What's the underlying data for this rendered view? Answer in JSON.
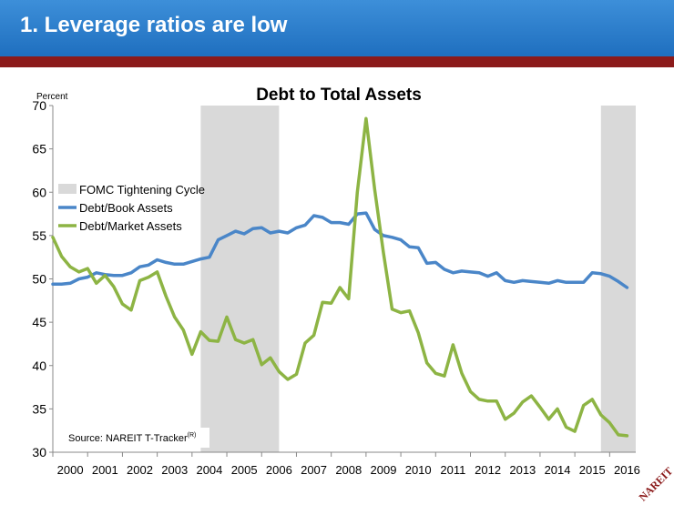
{
  "header": {
    "title": "1.  Leverage ratios are low"
  },
  "colors": {
    "header_bg": "#2a7acb",
    "header_bar": "#8b1a1a",
    "book": "#4a86c8",
    "market": "#8db444",
    "shade": "#d9d9d9"
  },
  "logo": {
    "text": "NAREIT"
  },
  "chart_data": {
    "type": "line",
    "title": "Debt to Total Assets",
    "ylabel": "Percent",
    "ylim": [
      30,
      70
    ],
    "yticks": [
      30,
      35,
      40,
      45,
      50,
      55,
      60,
      65,
      70
    ],
    "xlim": [
      2000,
      2016.75
    ],
    "xticks": [
      "2000",
      "2001",
      "2002",
      "2003",
      "2004",
      "2005",
      "2006",
      "2007",
      "2008",
      "2009",
      "2010",
      "2011",
      "2012",
      "2013",
      "2014",
      "2015",
      "2016"
    ],
    "shaded_periods": [
      {
        "start": 2004.25,
        "end": 2006.5
      },
      {
        "start": 2015.75,
        "end": 2016.75
      }
    ],
    "legend": [
      {
        "label": "FOMC Tightening Cycle",
        "kind": "shade"
      },
      {
        "label": "Debt/Book Assets",
        "kind": "book"
      },
      {
        "label": "Debt/Market Assets",
        "kind": "market"
      }
    ],
    "source": "Source: NAREIT T-Tracker",
    "source_sup": "(R)",
    "series": [
      {
        "name": "Debt/Book Assets",
        "x": [
          2000.0,
          2000.25,
          2000.5,
          2000.75,
          2001.0,
          2001.25,
          2001.5,
          2001.75,
          2002.0,
          2002.25,
          2002.5,
          2002.75,
          2003.0,
          2003.25,
          2003.5,
          2003.75,
          2004.0,
          2004.25,
          2004.5,
          2004.75,
          2005.0,
          2005.25,
          2005.5,
          2005.75,
          2006.0,
          2006.25,
          2006.5,
          2006.75,
          2007.0,
          2007.25,
          2007.5,
          2007.75,
          2008.0,
          2008.25,
          2008.5,
          2008.75,
          2009.0,
          2009.25,
          2009.5,
          2009.75,
          2010.0,
          2010.25,
          2010.5,
          2010.75,
          2011.0,
          2011.25,
          2011.5,
          2011.75,
          2012.0,
          2012.25,
          2012.5,
          2012.75,
          2013.0,
          2013.25,
          2013.5,
          2013.75,
          2014.0,
          2014.25,
          2014.5,
          2014.75,
          2015.0,
          2015.25,
          2015.5,
          2015.75,
          2016.0,
          2016.25,
          2016.5
        ],
        "values": [
          49.4,
          49.4,
          49.5,
          50.0,
          50.2,
          50.7,
          50.5,
          50.4,
          50.4,
          50.7,
          51.4,
          51.6,
          52.2,
          51.9,
          51.7,
          51.7,
          52.0,
          52.3,
          52.5,
          54.5,
          55.0,
          55.5,
          55.2,
          55.8,
          55.9,
          55.3,
          55.5,
          55.3,
          55.9,
          56.2,
          57.3,
          57.1,
          56.5,
          56.5,
          56.3,
          57.5,
          57.6,
          55.7,
          55.0,
          54.8,
          54.5,
          53.7,
          53.6,
          51.8,
          51.9,
          51.1,
          50.7,
          50.9,
          50.8,
          50.7,
          50.3,
          50.7,
          49.8,
          49.6,
          49.8,
          49.7,
          49.6,
          49.5,
          49.8,
          49.6,
          49.6,
          49.6,
          50.7,
          50.6,
          50.3,
          49.7,
          49.0
        ]
      },
      {
        "name": "Debt/Market Assets",
        "x": [
          2000.0,
          2000.25,
          2000.5,
          2000.75,
          2001.0,
          2001.25,
          2001.5,
          2001.75,
          2002.0,
          2002.25,
          2002.5,
          2002.75,
          2003.0,
          2003.25,
          2003.5,
          2003.75,
          2004.0,
          2004.25,
          2004.5,
          2004.75,
          2005.0,
          2005.25,
          2005.5,
          2005.75,
          2006.0,
          2006.25,
          2006.5,
          2006.75,
          2007.0,
          2007.25,
          2007.5,
          2007.75,
          2008.0,
          2008.25,
          2008.5,
          2008.75,
          2009.0,
          2009.25,
          2009.5,
          2009.75,
          2010.0,
          2010.25,
          2010.5,
          2010.75,
          2011.0,
          2011.25,
          2011.5,
          2011.75,
          2012.0,
          2012.25,
          2012.5,
          2012.75,
          2013.0,
          2013.25,
          2013.5,
          2013.75,
          2014.0,
          2014.25,
          2014.5,
          2014.75,
          2015.0,
          2015.25,
          2015.5,
          2015.75,
          2016.0,
          2016.25,
          2016.5
        ],
        "values": [
          54.8,
          52.6,
          51.4,
          50.8,
          51.2,
          49.5,
          50.4,
          49.1,
          47.1,
          46.4,
          49.8,
          50.2,
          50.8,
          48.0,
          45.6,
          44.1,
          41.3,
          43.9,
          42.9,
          42.8,
          45.6,
          43.0,
          42.6,
          43.0,
          40.1,
          40.9,
          39.3,
          38.4,
          39.0,
          42.6,
          43.5,
          47.3,
          47.2,
          49.0,
          47.7,
          60.0,
          68.5,
          60.3,
          53.0,
          46.5,
          46.1,
          46.3,
          43.8,
          40.3,
          39.1,
          38.8,
          42.4,
          39.1,
          37.0,
          36.1,
          35.9,
          35.9,
          33.8,
          34.5,
          35.8,
          36.5,
          35.2,
          33.8,
          35.0,
          32.9,
          32.4,
          35.4,
          36.1,
          34.3,
          33.4,
          32.0,
          31.9
        ]
      }
    ]
  }
}
